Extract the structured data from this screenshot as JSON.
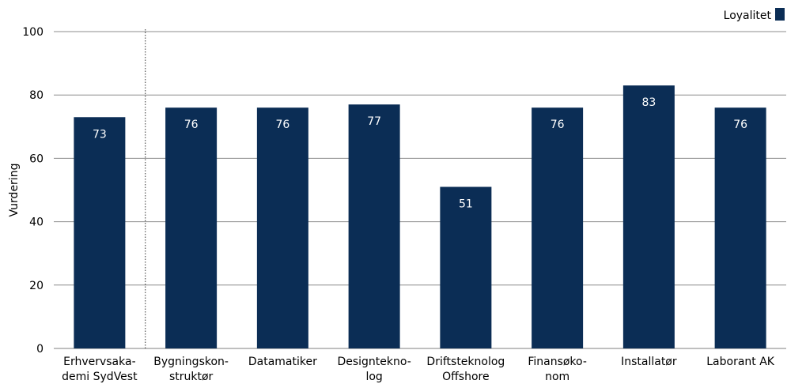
{
  "chart_data": {
    "type": "bar",
    "ylabel": "Vurdering",
    "ylim": [
      0,
      100
    ],
    "yticks": [
      0,
      20,
      40,
      60,
      80,
      100
    ],
    "grid": true,
    "legend": {
      "position": "top-right",
      "entries": [
        "Loyalitet"
      ]
    },
    "categories": [
      [
        "Erhvervsaka-",
        "demi SydVest"
      ],
      [
        "Bygningskon-",
        "struktør"
      ],
      [
        "Datamatiker"
      ],
      [
        "Designtekno-",
        "log"
      ],
      [
        "Driftsteknolog",
        "Offshore"
      ],
      [
        "Finansøko-",
        "nom"
      ],
      [
        "Installatør"
      ],
      [
        "Laborant AK"
      ]
    ],
    "series": [
      {
        "name": "Loyalitet",
        "values": [
          73,
          76,
          76,
          77,
          51,
          76,
          83,
          76
        ],
        "color": "#0b2d55"
      }
    ],
    "data_labels": [
      "73",
      "76",
      "76",
      "77",
      "51",
      "76",
      "83",
      "76"
    ],
    "separator_after_index": 0
  }
}
